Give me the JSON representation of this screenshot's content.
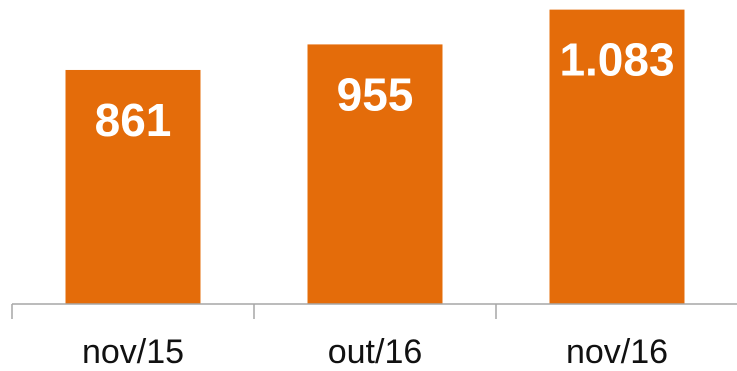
{
  "chart_data": {
    "type": "bar",
    "categories": [
      "nov/15",
      "out/16",
      "nov/16"
    ],
    "values": [
      861,
      955,
      1083
    ],
    "data_labels": [
      "861",
      "955",
      "1.083"
    ],
    "title": "",
    "xlabel": "",
    "ylabel": "",
    "ylim": [
      0,
      1100
    ],
    "grid": false,
    "legend": "none",
    "bar_color": "#E46C0A",
    "label_color": "#FFFFFF",
    "axis_color": "#A6A6A6"
  }
}
